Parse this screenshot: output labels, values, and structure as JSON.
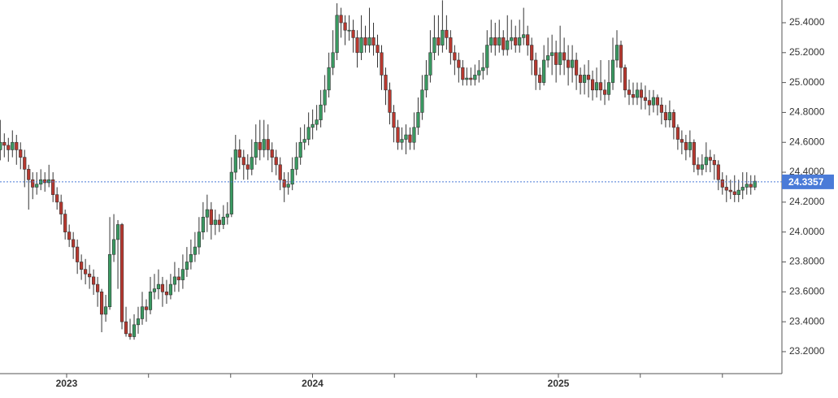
{
  "chart_data": {
    "type": "candlestick",
    "xlim": [
      2022.729,
      2025.909
    ],
    "xticks": [
      2023,
      2024,
      2025
    ],
    "xminorticks": [
      2023.333,
      2023.667,
      2024.333,
      2024.667,
      2025.333,
      2025.667
    ],
    "ylim": [
      23.053,
      25.552
    ],
    "yticks": [
      {
        "value": 23.2,
        "label": "23.2000"
      },
      {
        "value": 23.4,
        "label": "23.4000"
      },
      {
        "value": 23.6,
        "label": "23.6000"
      },
      {
        "value": 23.8,
        "label": "23.8000"
      },
      {
        "value": 24.0,
        "label": "24.0000"
      },
      {
        "value": 24.2,
        "label": "24.2000"
      },
      {
        "value": 24.4,
        "label": "24.4000"
      },
      {
        "value": 24.6,
        "label": "24.6000"
      },
      {
        "value": 24.8,
        "label": "24.8000"
      },
      {
        "value": 25.0,
        "label": "25.0000"
      },
      {
        "value": 25.2,
        "label": "25.2000"
      },
      {
        "value": 25.4,
        "label": "25.4000"
      }
    ],
    "last_price": 24.3357,
    "last_price_color": "#4a7bd8",
    "up_color": "#3a9a62",
    "down_color": "#b8382f",
    "x": [
      2022.73,
      2022.7465,
      2022.763,
      2022.7795,
      2022.796,
      2022.8125,
      2022.829,
      2022.8455,
      2022.862,
      2022.8785,
      2022.895,
      2022.9115,
      2022.928,
      2022.9445,
      2022.961,
      2022.9775,
      2022.994,
      2023.0105,
      2023.027,
      2023.0435,
      2023.06,
      2023.0765,
      2023.093,
      2023.1095,
      2023.126,
      2023.1425,
      2023.159,
      2023.1755,
      2023.192,
      2023.2085,
      2023.225,
      2023.2415,
      2023.258,
      2023.2745,
      2023.291,
      2023.3075,
      2023.324,
      2023.3405,
      2023.357,
      2023.3735,
      2023.39,
      2023.4065,
      2023.423,
      2023.4395,
      2023.456,
      2023.4725,
      2023.489,
      2023.5055,
      2023.522,
      2023.5385,
      2023.555,
      2023.5715,
      2023.588,
      2023.6045,
      2023.621,
      2023.6375,
      2023.654,
      2023.6705,
      2023.687,
      2023.7035,
      2023.72,
      2023.7365,
      2023.753,
      2023.7695,
      2023.786,
      2023.8025,
      2023.819,
      2023.8355,
      2023.852,
      2023.8685,
      2023.885,
      2023.9015,
      2023.918,
      2023.9345,
      2023.951,
      2023.9675,
      2023.984,
      2024.0005,
      2024.017,
      2024.0335,
      2024.05,
      2024.0665,
      2024.083,
      2024.0995,
      2024.116,
      2024.1325,
      2024.149,
      2024.1655,
      2024.182,
      2024.1985,
      2024.215,
      2024.2315,
      2024.248,
      2024.2645,
      2024.281,
      2024.2975,
      2024.314,
      2024.3305,
      2024.347,
      2024.3635,
      2024.38,
      2024.3965,
      2024.413,
      2024.4295,
      2024.446,
      2024.4625,
      2024.479,
      2024.4955,
      2024.512,
      2024.5285,
      2024.545,
      2024.5615,
      2024.578,
      2024.5945,
      2024.611,
      2024.6275,
      2024.644,
      2024.6605,
      2024.677,
      2024.6935,
      2024.71,
      2024.7265,
      2024.743,
      2024.7595,
      2024.776,
      2024.7925,
      2024.809,
      2024.8255,
      2024.842,
      2024.8585,
      2024.875,
      2024.8915,
      2024.908,
      2024.9245,
      2024.941,
      2024.9575,
      2024.974,
      2024.9905,
      2025.007,
      2025.0235,
      2025.04,
      2025.0565,
      2025.073,
      2025.0895,
      2025.106,
      2025.1225,
      2025.139,
      2025.1555,
      2025.172,
      2025.1885,
      2025.205,
      2025.2215,
      2025.238,
      2025.2545,
      2025.271,
      2025.2875,
      2025.304,
      2025.3205,
      2025.337,
      2025.3535,
      2025.37,
      2025.3865,
      2025.403,
      2025.4195,
      2025.436,
      2025.4525,
      2025.469,
      2025.4855,
      2025.502,
      2025.5185,
      2025.535,
      2025.5515,
      2025.568,
      2025.5845,
      2025.601,
      2025.6175,
      2025.634,
      2025.6505,
      2025.667,
      2025.6835,
      2025.7,
      2025.7165,
      2025.733,
      2025.7495,
      2025.766,
      2025.7825,
      2025.799
    ],
    "open": [
      24.55,
      24.6,
      24.58,
      24.55,
      24.6,
      24.55,
      24.5,
      24.42,
      24.35,
      24.3,
      24.32,
      24.35,
      24.33,
      24.35,
      24.25,
      24.2,
      24.12,
      24.0,
      23.95,
      23.9,
      23.8,
      23.75,
      23.72,
      23.7,
      23.65,
      23.6,
      23.45,
      23.5,
      23.85,
      23.95,
      24.05,
      23.4,
      23.32,
      23.3,
      23.38,
      23.42,
      23.5,
      23.48,
      23.6,
      23.62,
      23.65,
      23.6,
      23.58,
      23.65,
      23.7,
      23.68,
      23.75,
      23.8,
      23.85,
      23.9,
      24.0,
      24.1,
      24.15,
      24.05,
      24.08,
      24.05,
      24.1,
      24.12,
      24.4,
      24.55,
      24.5,
      24.45,
      24.42,
      24.5,
      24.6,
      24.55,
      24.62,
      24.55,
      24.5,
      24.45,
      24.35,
      24.3,
      24.32,
      24.42,
      24.5,
      24.6,
      24.62,
      24.7,
      24.72,
      24.75,
      24.85,
      24.95,
      25.1,
      25.2,
      25.45,
      25.4,
      25.35,
      25.35,
      25.3,
      25.2,
      25.3,
      25.25,
      25.3,
      25.25,
      25.2,
      25.05,
      24.95,
      24.8,
      24.7,
      24.6,
      24.62,
      24.65,
      24.6,
      24.7,
      24.8,
      24.95,
      25.05,
      25.2,
      25.3,
      25.25,
      25.35,
      25.3,
      25.2,
      25.15,
      25.1,
      25.02,
      25.03,
      25.02,
      25.05,
      25.08,
      25.1,
      25.25,
      25.3,
      25.25,
      25.3,
      25.22,
      25.28,
      25.3,
      25.25,
      25.3,
      25.32,
      25.25,
      25.15,
      25.05,
      25.0,
      25.15,
      25.18,
      25.2,
      25.12,
      25.2,
      25.15,
      25.1,
      25.15,
      25.05,
      25.0,
      25.05,
      25.02,
      24.95,
      25.0,
      24.95,
      24.92,
      25.0,
      25.15,
      25.25,
      25.1,
      24.95,
      24.92,
      24.9,
      24.95,
      24.9,
      24.88,
      24.85,
      24.9,
      24.85,
      24.8,
      24.75,
      24.8,
      24.7,
      24.62,
      24.6,
      24.55,
      24.6,
      24.45,
      24.42,
      24.45,
      24.5,
      24.48,
      24.45,
      24.35,
      24.3,
      24.28,
      24.27,
      24.25,
      24.28,
      24.3,
      24.32,
      24.3
    ],
    "high": [
      24.75,
      24.66,
      24.63,
      24.68,
      24.65,
      24.6,
      24.55,
      24.45,
      24.4,
      24.4,
      24.42,
      24.4,
      24.45,
      24.4,
      24.3,
      24.25,
      24.15,
      24.05,
      24.0,
      23.95,
      23.85,
      23.82,
      23.78,
      23.75,
      23.7,
      23.62,
      23.58,
      24.1,
      24.12,
      24.08,
      24.06,
      23.5,
      23.42,
      23.45,
      23.5,
      23.6,
      23.55,
      23.7,
      23.72,
      23.75,
      23.7,
      23.68,
      23.72,
      23.8,
      23.76,
      23.85,
      23.9,
      23.95,
      24.0,
      24.1,
      24.2,
      24.25,
      24.2,
      24.15,
      24.12,
      24.18,
      24.2,
      24.5,
      24.65,
      24.62,
      24.55,
      24.52,
      24.62,
      24.72,
      24.75,
      24.75,
      24.72,
      24.6,
      24.55,
      24.5,
      24.4,
      24.4,
      24.5,
      24.6,
      24.7,
      24.72,
      24.8,
      24.82,
      24.85,
      24.95,
      25.05,
      25.2,
      25.35,
      25.53,
      25.5,
      25.45,
      25.45,
      25.42,
      25.35,
      25.45,
      25.38,
      25.5,
      25.4,
      25.32,
      25.25,
      25.1,
      25.0,
      24.85,
      24.75,
      24.7,
      24.72,
      24.7,
      24.8,
      24.9,
      25.05,
      25.15,
      25.35,
      25.45,
      25.45,
      25.55,
      25.45,
      25.35,
      25.25,
      25.2,
      25.15,
      25.1,
      25.1,
      25.12,
      25.15,
      25.2,
      25.35,
      25.42,
      25.4,
      25.42,
      25.35,
      25.45,
      25.42,
      25.38,
      25.42,
      25.5,
      25.38,
      25.3,
      25.2,
      25.1,
      25.25,
      25.3,
      25.32,
      25.28,
      25.38,
      25.3,
      25.25,
      25.25,
      25.2,
      25.1,
      25.12,
      25.15,
      25.08,
      25.1,
      25.15,
      25.02,
      25.15,
      25.3,
      25.35,
      25.28,
      25.12,
      25.02,
      25.0,
      25.0,
      25.0,
      24.98,
      24.95,
      24.95,
      24.92,
      24.9,
      24.85,
      24.88,
      24.82,
      24.72,
      24.68,
      24.65,
      24.68,
      24.62,
      24.5,
      24.52,
      24.6,
      24.55,
      24.52,
      24.48,
      24.4,
      24.38,
      24.35,
      24.38,
      24.35,
      24.4,
      24.4,
      24.38,
      24.38
    ],
    "low": [
      24.48,
      24.5,
      24.47,
      24.5,
      24.45,
      24.42,
      24.3,
      24.15,
      24.22,
      24.25,
      24.28,
      24.27,
      24.3,
      24.2,
      24.15,
      24.05,
      23.95,
      23.9,
      23.82,
      23.72,
      23.68,
      23.65,
      23.62,
      23.58,
      23.5,
      23.33,
      23.4,
      23.48,
      23.8,
      23.62,
      23.35,
      23.3,
      23.28,
      23.28,
      23.32,
      23.38,
      23.4,
      23.45,
      23.55,
      23.55,
      23.5,
      23.52,
      23.55,
      23.6,
      23.6,
      23.62,
      23.7,
      23.75,
      23.8,
      23.85,
      23.95,
      24.0,
      23.95,
      23.98,
      24.0,
      24.02,
      24.05,
      24.1,
      24.35,
      24.42,
      24.35,
      24.35,
      24.38,
      24.45,
      24.48,
      24.5,
      24.48,
      24.4,
      24.38,
      24.28,
      24.2,
      24.25,
      24.28,
      24.38,
      24.45,
      24.55,
      24.58,
      24.62,
      24.68,
      24.7,
      24.8,
      24.9,
      25.05,
      25.15,
      25.3,
      25.25,
      25.28,
      25.2,
      25.1,
      25.15,
      25.2,
      25.2,
      25.18,
      25.1,
      24.95,
      24.85,
      24.72,
      24.6,
      24.55,
      24.55,
      24.52,
      24.55,
      24.55,
      24.65,
      24.75,
      24.9,
      25.0,
      25.15,
      25.18,
      25.2,
      25.22,
      25.12,
      25.05,
      25.0,
      24.98,
      24.98,
      24.98,
      24.98,
      25.0,
      25.02,
      25.05,
      25.2,
      25.18,
      25.2,
      25.18,
      25.18,
      25.22,
      25.2,
      25.2,
      25.25,
      25.18,
      25.05,
      24.95,
      24.95,
      24.98,
      25.1,
      25.05,
      25.0,
      25.05,
      25.05,
      24.98,
      25.0,
      24.95,
      24.92,
      24.92,
      24.9,
      24.88,
      24.9,
      24.88,
      24.85,
      24.88,
      24.95,
      25.1,
      25.0,
      24.9,
      24.85,
      24.85,
      24.85,
      24.82,
      24.82,
      24.78,
      24.8,
      24.78,
      24.72,
      24.7,
      24.7,
      24.62,
      24.55,
      24.52,
      24.48,
      24.5,
      24.4,
      24.38,
      24.38,
      24.4,
      24.4,
      24.35,
      24.28,
      24.25,
      24.2,
      24.22,
      24.2,
      24.2,
      24.22,
      24.25,
      24.25,
      24.28
    ],
    "close": [
      24.6,
      24.58,
      24.55,
      24.6,
      24.55,
      24.5,
      24.42,
      24.35,
      24.3,
      24.32,
      24.35,
      24.33,
      24.35,
      24.25,
      24.2,
      24.12,
      24.0,
      23.95,
      23.9,
      23.8,
      23.75,
      23.72,
      23.7,
      23.65,
      23.6,
      23.45,
      23.5,
      23.85,
      23.95,
      24.05,
      23.4,
      23.32,
      23.3,
      23.38,
      23.42,
      23.5,
      23.48,
      23.6,
      23.62,
      23.65,
      23.6,
      23.58,
      23.65,
      23.7,
      23.68,
      23.75,
      23.8,
      23.85,
      23.9,
      24.0,
      24.1,
      24.15,
      24.05,
      24.08,
      24.05,
      24.1,
      24.12,
      24.4,
      24.55,
      24.5,
      24.45,
      24.42,
      24.5,
      24.6,
      24.55,
      24.62,
      24.55,
      24.5,
      24.45,
      24.35,
      24.3,
      24.32,
      24.42,
      24.5,
      24.6,
      24.62,
      24.7,
      24.72,
      24.75,
      24.85,
      24.95,
      25.1,
      25.2,
      25.45,
      25.4,
      25.35,
      25.35,
      25.3,
      25.2,
      25.3,
      25.25,
      25.3,
      25.25,
      25.2,
      25.05,
      24.95,
      24.8,
      24.7,
      24.6,
      24.62,
      24.65,
      24.6,
      24.7,
      24.8,
      24.95,
      25.05,
      25.2,
      25.3,
      25.25,
      25.35,
      25.3,
      25.2,
      25.15,
      25.1,
      25.02,
      25.03,
      25.02,
      25.05,
      25.08,
      25.1,
      25.25,
      25.3,
      25.25,
      25.3,
      25.22,
      25.28,
      25.3,
      25.25,
      25.3,
      25.32,
      25.25,
      25.15,
      25.05,
      25.0,
      25.15,
      25.18,
      25.2,
      25.12,
      25.2,
      25.15,
      25.1,
      25.15,
      25.05,
      25.0,
      25.05,
      25.02,
      24.95,
      25.0,
      24.95,
      24.92,
      25.0,
      25.15,
      25.25,
      25.1,
      24.95,
      24.92,
      24.9,
      24.95,
      24.9,
      24.88,
      24.85,
      24.9,
      24.85,
      24.8,
      24.75,
      24.8,
      24.7,
      24.62,
      24.6,
      24.55,
      24.6,
      24.45,
      24.42,
      24.45,
      24.5,
      24.48,
      24.45,
      24.35,
      24.3,
      24.28,
      24.27,
      24.25,
      24.28,
      24.3,
      24.32,
      24.3,
      24.34
    ]
  }
}
